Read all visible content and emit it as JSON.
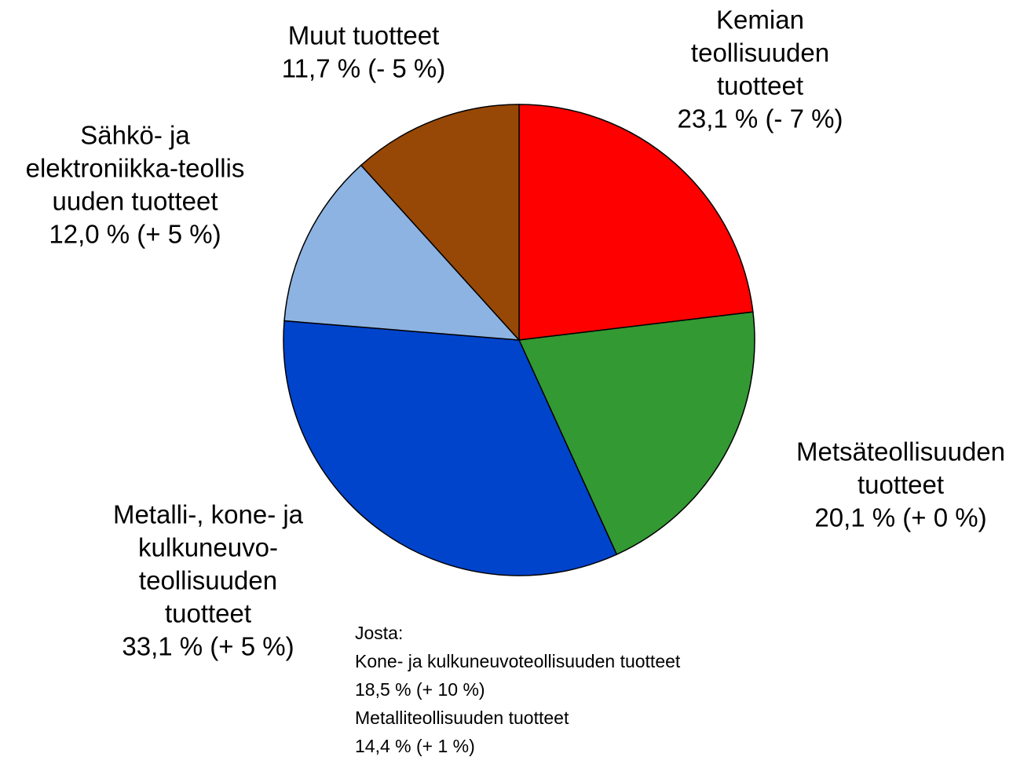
{
  "chart_data": {
    "type": "pie",
    "categories": [
      [
        "Kemian",
        "teollisuuden",
        "tuotteet"
      ],
      [
        "Metsäteollisuuden",
        "tuotteet"
      ],
      [
        "Metalli-, kone- ja",
        "kulkuneuvo-",
        "teollisuuden",
        "tuotteet"
      ],
      [
        "Sähkö- ja",
        "elektroniikka-teollis",
        "uuden tuotteet"
      ],
      [
        "Muut tuotteet"
      ]
    ],
    "values": [
      23.1,
      20.1,
      33.1,
      12.0,
      11.7
    ],
    "value_labels": [
      "23,1 % (- 7 %)",
      "20,1 % (+ 0 %)",
      "33,1 % (+ 5 %)",
      "12,0 % (+ 5 %)",
      "11,7 % (- 5 %)"
    ],
    "colors": [
      "#ff0000",
      "#339933",
      "#0044cc",
      "#8db3e2",
      "#974806"
    ],
    "annotation": [
      "Josta:",
      "Kone- ja kulkuneuvoteollisuuden tuotteet",
      "18,5 % (+ 10 %)",
      "Metalliteollisuuden tuotteet",
      "14,4 % (+ 1 %)"
    ]
  }
}
